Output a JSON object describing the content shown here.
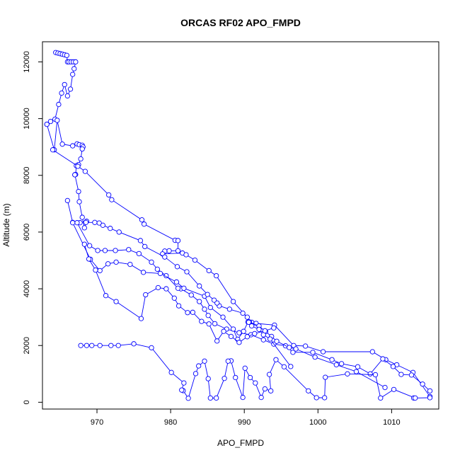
{
  "chart_data": {
    "type": "scatter",
    "title": "ORCAS RF02 APO_FMPD",
    "xlabel": "APO_FMPD",
    "ylabel": "Altitude (m)",
    "xlim": [
      962.6,
      1016.4
    ],
    "ylim": [
      -240,
      12710
    ],
    "x_ticks": [
      970,
      980,
      990,
      1000,
      1010
    ],
    "y_ticks": [
      0,
      2000,
      4000,
      6000,
      8000,
      10000,
      12000
    ],
    "grid": false,
    "marker": "open-circle",
    "line_connected": true,
    "color": "#0000ff",
    "series": [
      {
        "x": [
          964.4,
          964.7,
          965.0,
          965.3,
          965.6,
          965.9,
          966.0,
          966.2,
          966.5,
          966.8,
          967.1,
          966.9,
          966.7,
          966.4,
          966.0,
          965.6,
          965.2,
          964.8,
          964.3,
          963.7,
          963.2
        ],
        "y": [
          12330,
          12310,
          12290,
          12270,
          12250,
          12230,
          12000,
          12000,
          12000,
          12000,
          12000,
          11760,
          11560,
          11040,
          10800,
          11200,
          10900,
          10500,
          9980,
          9900,
          9800
        ]
      },
      {
        "x": [
          963.2,
          964.2,
          964.6,
          965.3,
          966.7,
          967.3,
          967.6,
          968.0,
          968.1,
          968.0,
          967.8,
          967.5,
          967.2,
          967.1,
          967.0
        ],
        "y": [
          9800,
          8900,
          9940,
          9100,
          9040,
          9110,
          9080,
          9060,
          9000,
          8930,
          8580,
          8380,
          8340,
          8030,
          8020
        ]
      },
      {
        "x": [
          967.0,
          967.5,
          967.6,
          968.0,
          968.3,
          968.6,
          967.7,
          966.7,
          966.0
        ],
        "y": [
          8020,
          7430,
          7070,
          6520,
          6150,
          6380,
          6330,
          6340,
          7110
        ]
      },
      {
        "x": [
          964.0,
          967.4,
          968.4,
          971.6,
          972.0,
          976.1,
          976.4,
          980.6,
          981.0,
          981.0,
          979.8,
          979.2,
          978.9,
          981.6,
          982.1,
          983.3,
          985.2,
          986.2,
          988.5,
          991.0,
          991.6,
          994.1,
          996.7,
          998.3,
          1000.7,
          1007.4,
          1009.2,
          1010.7,
          1012.9,
          1015.2
        ],
        "y": [
          8900,
          8320,
          8140,
          7310,
          7140,
          6430,
          6280,
          5710,
          5700,
          5340,
          5340,
          5330,
          5230,
          5260,
          5200,
          5010,
          4640,
          4460,
          3550,
          2820,
          2780,
          2720,
          2000,
          1980,
          1780,
          1780,
          1500,
          1320,
          1050,
          200
        ]
      },
      {
        "x": [
          1015.2,
          1014.2,
          1012.7,
          1011.3,
          1010.2,
          1008.8,
          1007.1,
          1005.4,
          1003.2,
          1001.9,
          999.3,
          996.6,
          995.6,
          994.0,
          992.6,
          990.9,
          989.3,
          987.6,
          986.0,
          985.1,
          984.6,
          983.9,
          982.8,
          981.4,
          981.0,
          979.4,
          978.2,
          977.4,
          975.7,
          974.3,
          972.5,
          971.1,
          970.1,
          969.0,
          967.3
        ],
        "y": [
          400,
          640,
          960,
          980,
          1260,
          1530,
          1000,
          1250,
          1360,
          1500,
          1760,
          1760,
          1990,
          2050,
          2200,
          2380,
          2450,
          2580,
          2770,
          3060,
          3280,
          3550,
          3780,
          4000,
          4020,
          4460,
          4690,
          4940,
          5240,
          5380,
          5350,
          5350,
          5350,
          5520,
          6330
        ]
      },
      {
        "x": [
          1015.2,
          1013.0,
          1013.2,
          1010.3,
          1008.5,
          1007.8,
          1004.0,
          1001.0,
          1000.9,
          999.8,
          998.7,
          995.4,
          994.3,
          993.4,
          993.6,
          992.8,
          992.3,
          991.5,
          990.8,
          990.1,
          989.8,
          988.8,
          988.2,
          987.8,
          987.3,
          986.2,
          985.4,
          985.1,
          984.6,
          983.8,
          983.4,
          982.4,
          981.7,
          981.5,
          981.8,
          980.1,
          977.4,
          975.0,
          972.9,
          971.9,
          970.4,
          969.3,
          968.6,
          967.8
        ],
        "y": [
          160,
          150,
          150,
          450,
          150,
          970,
          1000,
          880,
          160,
          160,
          400,
          1250,
          1500,
          980,
          400,
          470,
          170,
          680,
          870,
          1200,
          170,
          870,
          1460,
          1450,
          840,
          150,
          150,
          830,
          1450,
          1280,
          1010,
          140,
          410,
          430,
          680,
          1050,
          1920,
          2060,
          2000,
          2000,
          2000,
          2000,
          2000,
          2000
        ]
      },
      {
        "x": [
          1009.1,
          1005.2,
          1002.5,
          999.6,
          997.0,
          996.1,
          994.4,
          993.7,
          992.9,
          992.0,
          990.7,
          990.5,
          989.9,
          989.1,
          988.5,
          987.1,
          985.4,
          984.6,
          981.8,
          980.8,
          978.6,
          976.3,
          974.5,
          972.6,
          971.5,
          970.4,
          969.1,
          966.7
        ],
        "y": [
          520,
          1080,
          1320,
          1590,
          1880,
          1930,
          2150,
          2320,
          2490,
          2690,
          2830,
          2830,
          2500,
          2220,
          2580,
          3000,
          3340,
          3740,
          4020,
          4240,
          4540,
          4580,
          4860,
          4940,
          4880,
          4640,
          5040,
          6330
        ]
      },
      {
        "x": [
          996.3,
          993.5,
          992.6,
          992.0,
          991.0,
          990.6,
          990.4,
          989.8,
          988.0,
          986.6,
          986.3,
          985.9,
          985.0,
          983.9,
          982.2,
          980.9,
          979.2,
          976.5,
          975.9,
          973.0,
          971.8,
          970.8,
          970.3,
          969.7,
          968.5
        ],
        "y": [
          1260,
          2230,
          2380,
          2570,
          2690,
          2820,
          3000,
          3140,
          3280,
          3400,
          3500,
          3600,
          3800,
          4100,
          4600,
          4780,
          5120,
          5490,
          5700,
          6000,
          6130,
          6240,
          6320,
          6340,
          6340
        ]
      },
      {
        "x": [
          994.0,
          992.8,
          991.4,
          990.4,
          989.3,
          988.2,
          987.2,
          986.3,
          985.2,
          984.2,
          983.0,
          982.3,
          981.1,
          980.5,
          979.4,
          978.3,
          976.6,
          976.0,
          972.6,
          971.2,
          969.8,
          968.9,
          968.3
        ],
        "y": [
          2620,
          2520,
          2420,
          2310,
          2110,
          2320,
          2500,
          2160,
          2760,
          2850,
          3170,
          3160,
          3400,
          3670,
          4000,
          4040,
          3790,
          2950,
          3550,
          3760,
          4660,
          5050,
          5570
        ]
      }
    ]
  }
}
